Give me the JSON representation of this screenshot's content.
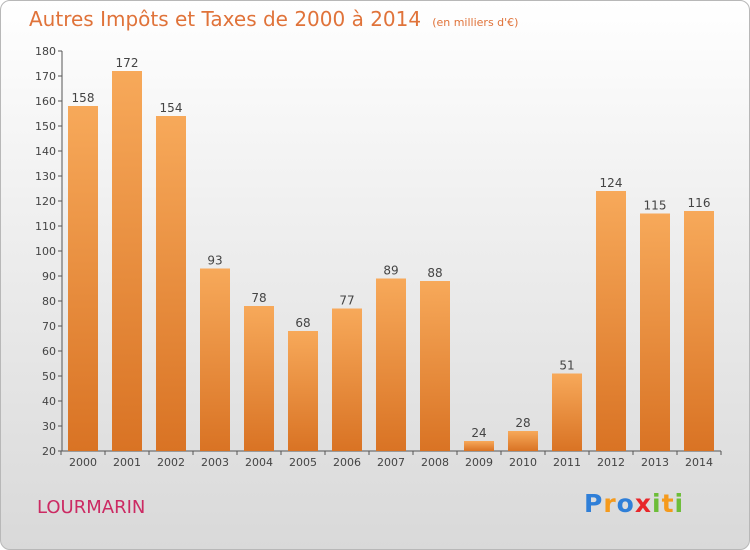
{
  "title": "Autres Impôts et Taxes de 2000 à 2014",
  "subtitle": "(en milliers d'€)",
  "city": "LOURMARIN",
  "logo": {
    "text": "Proxiti"
  },
  "colors": {
    "bar_light": "#f7a95a",
    "bar_dark": "#d97324",
    "title": "#e0733a",
    "city": "#cc2a63"
  },
  "chart_data": {
    "type": "bar",
    "title": "Autres Impôts et Taxes de 2000 à 2014",
    "subtitle": "(en milliers d'€)",
    "categories": [
      "2000",
      "2001",
      "2002",
      "2003",
      "2004",
      "2005",
      "2006",
      "2007",
      "2008",
      "2009",
      "2010",
      "2011",
      "2012",
      "2013",
      "2014"
    ],
    "values": [
      158,
      172,
      154,
      93,
      78,
      68,
      77,
      89,
      88,
      24,
      28,
      51,
      124,
      115,
      116
    ],
    "ylim": [
      20,
      180
    ],
    "yticks": [
      20,
      30,
      40,
      50,
      60,
      70,
      80,
      90,
      100,
      110,
      120,
      130,
      140,
      150,
      160,
      170,
      180
    ],
    "grid": false,
    "xlabel": "",
    "ylabel": ""
  }
}
